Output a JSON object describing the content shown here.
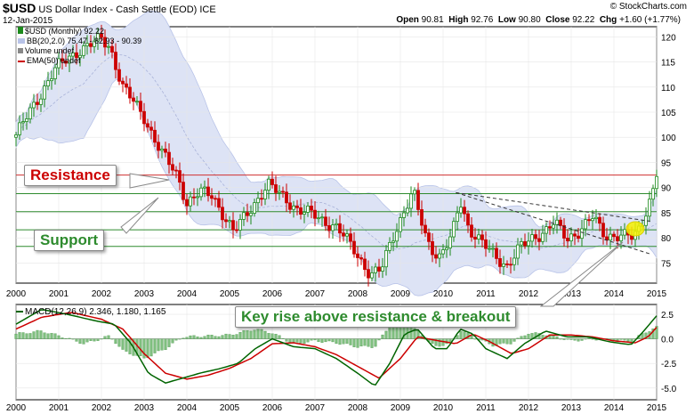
{
  "header": {
    "symbol": "$USD",
    "name": "US Dollar Index - Cash Settle (EOD)",
    "exchange": "ICE",
    "date": "12-Jan-2015",
    "open_label": "Open",
    "open": "90.81",
    "high_label": "High",
    "high": "92.76",
    "low_label": "Low",
    "low": "90.80",
    "close_label": "Close",
    "close": "92.22",
    "chg_label": "Chg",
    "chg": "+1.60 (+1.77%)",
    "watermark": "© StockCharts.com"
  },
  "legend": {
    "price": "$USD (Monthly) 92.22",
    "bb": "BB(20,2.0) 75.47 - 82.93 - 90.39",
    "volume": "Volume undef",
    "ema": "EMA(50) undef"
  },
  "annotations": {
    "resistance": "Resistance",
    "support": "Support",
    "breakout": "Key rise above resistance & breakout"
  },
  "colors": {
    "up": "#1c8a1c",
    "down": "#cc0000",
    "resistance_line": "#d03030",
    "support_line": "#2e8b2e",
    "band_fill": "#dde3f5",
    "macd": "#006400",
    "signal": "#cc0000",
    "histogram": "#7fbf7f",
    "annotation_red": "#cc0000",
    "annotation_green": "#2e8b2e"
  },
  "chart_data": [
    {
      "type": "candlestick",
      "title": "$USD (Monthly) 92.22",
      "x_ticks": [
        "2000",
        "2001",
        "2002",
        "2003",
        "2004",
        "2005",
        "2006",
        "2007",
        "2008",
        "2009",
        "2010",
        "2011",
        "2012",
        "2013",
        "2014",
        "2015"
      ],
      "y_ticks": [
        75,
        80,
        85,
        90,
        95,
        100,
        105,
        110,
        115,
        120
      ],
      "ylim": [
        71,
        122
      ],
      "xlim": [
        2000.0,
        2015.0
      ],
      "horizontal_lines": [
        92.5,
        88.8,
        85.2,
        81.6,
        78.3
      ],
      "breakout_trendlines": [
        {
          "from": [
            2010.3,
            89.0
          ],
          "to": [
            2014.85,
            76.8
          ]
        },
        {
          "from": [
            2010.3,
            89.0
          ],
          "to": [
            2014.85,
            83.3
          ]
        }
      ],
      "breakout_point": [
        2014.5,
        81.8
      ],
      "anchors": [
        [
          2000.0,
          100.5
        ],
        [
          2000.4,
          106
        ],
        [
          2000.9,
          113.5
        ],
        [
          2001.5,
          117.5
        ],
        [
          2002.0,
          119.5
        ],
        [
          2002.2,
          118
        ],
        [
          2002.5,
          110
        ],
        [
          2003.0,
          104
        ],
        [
          2003.4,
          97
        ],
        [
          2003.8,
          92
        ],
        [
          2004.0,
          87
        ],
        [
          2004.3,
          89
        ],
        [
          2004.6,
          88.5
        ],
        [
          2004.9,
          84
        ],
        [
          2005.1,
          81
        ],
        [
          2005.5,
          86
        ],
        [
          2005.9,
          90.5
        ],
        [
          2006.3,
          88
        ],
        [
          2006.6,
          85.5
        ],
        [
          2007.0,
          84.5
        ],
        [
          2007.5,
          82
        ],
        [
          2007.9,
          78
        ],
        [
          2008.3,
          72.5
        ],
        [
          2008.55,
          73.5
        ],
        [
          2008.8,
          80
        ],
        [
          2009.1,
          85.5
        ],
        [
          2009.3,
          89
        ],
        [
          2009.6,
          80
        ],
        [
          2009.9,
          76
        ],
        [
          2010.2,
          80
        ],
        [
          2010.4,
          87.5
        ],
        [
          2010.6,
          82
        ],
        [
          2010.9,
          79
        ],
        [
          2011.2,
          76.5
        ],
        [
          2011.5,
          74.5
        ],
        [
          2011.8,
          78
        ],
        [
          2012.1,
          80
        ],
        [
          2012.4,
          81.5
        ],
        [
          2012.6,
          83
        ],
        [
          2012.9,
          79.8
        ],
        [
          2013.2,
          81.5
        ],
        [
          2013.5,
          84
        ],
        [
          2013.8,
          80.5
        ],
        [
          2014.1,
          80.5
        ],
        [
          2014.45,
          80
        ],
        [
          2014.6,
          82
        ],
        [
          2014.75,
          85.5
        ],
        [
          2014.88,
          88.5
        ],
        [
          2015.0,
          92.2
        ]
      ]
    },
    {
      "type": "macd",
      "title": "MACD(12,26,9) 2.346, 1.180, 1.165",
      "params": "MACD(12,26,9)",
      "macd": 2.346,
      "signal": 1.18,
      "histogram": 1.165,
      "y_ticks": [
        2.5,
        0.0,
        -2.5,
        -5.0
      ],
      "ylim": [
        -6.2,
        3.5
      ],
      "x_ticks": [
        "2000",
        "2001",
        "2002",
        "2003",
        "2004",
        "2005",
        "2006",
        "2007",
        "2008",
        "2009",
        "2010",
        "2011",
        "2012",
        "2013",
        "2014",
        "2015"
      ],
      "macd_anchors": [
        [
          2000.0,
          1.5
        ],
        [
          2000.6,
          3
        ],
        [
          2001.2,
          2.5
        ],
        [
          2001.9,
          1.8
        ],
        [
          2002.3,
          1.5
        ],
        [
          2002.7,
          -0.5
        ],
        [
          2003.1,
          -3.5
        ],
        [
          2003.5,
          -4.5
        ],
        [
          2003.9,
          -4.0
        ],
        [
          2004.3,
          -3.5
        ],
        [
          2004.8,
          -3.0
        ],
        [
          2005.2,
          -2.5
        ],
        [
          2005.6,
          -1.0
        ],
        [
          2006.0,
          0.0
        ],
        [
          2006.5,
          -0.8
        ],
        [
          2007.0,
          -1.0
        ],
        [
          2007.5,
          -2.0
        ],
        [
          2008.0,
          -3.5
        ],
        [
          2008.4,
          -4.8
        ],
        [
          2008.75,
          -2.5
        ],
        [
          2009.1,
          0.5
        ],
        [
          2009.4,
          1.0
        ],
        [
          2009.8,
          -1.0
        ],
        [
          2010.1,
          -1.0
        ],
        [
          2010.4,
          1.0
        ],
        [
          2010.7,
          0.5
        ],
        [
          2011.0,
          -1.0
        ],
        [
          2011.5,
          -2.0
        ],
        [
          2011.9,
          -0.5
        ],
        [
          2012.4,
          0.8
        ],
        [
          2012.9,
          0.2
        ],
        [
          2013.4,
          0.2
        ],
        [
          2013.9,
          -0.3
        ],
        [
          2014.4,
          -0.6
        ],
        [
          2014.7,
          0.8
        ],
        [
          2015.0,
          2.35
        ]
      ],
      "signal_anchors": [
        [
          2000.0,
          1.0
        ],
        [
          2000.6,
          2.2
        ],
        [
          2001.3,
          2.7
        ],
        [
          2002.0,
          2.0
        ],
        [
          2002.5,
          1.0
        ],
        [
          2003.0,
          -1.5
        ],
        [
          2003.5,
          -3.5
        ],
        [
          2004.0,
          -4.1
        ],
        [
          2004.5,
          -3.7
        ],
        [
          2005.0,
          -3.0
        ],
        [
          2005.5,
          -2.0
        ],
        [
          2006.0,
          -0.5
        ],
        [
          2006.5,
          -0.4
        ],
        [
          2007.0,
          -0.8
        ],
        [
          2007.5,
          -1.6
        ],
        [
          2008.0,
          -2.8
        ],
        [
          2008.5,
          -4.0
        ],
        [
          2009.0,
          -2.0
        ],
        [
          2009.4,
          0.2
        ],
        [
          2009.9,
          -0.2
        ],
        [
          2010.3,
          -0.5
        ],
        [
          2010.7,
          0.5
        ],
        [
          2011.1,
          -0.3
        ],
        [
          2011.6,
          -1.5
        ],
        [
          2012.0,
          -1.0
        ],
        [
          2012.5,
          0.4
        ],
        [
          2013.0,
          0.4
        ],
        [
          2013.5,
          0.2
        ],
        [
          2014.0,
          -0.2
        ],
        [
          2014.5,
          -0.4
        ],
        [
          2014.8,
          0.2
        ],
        [
          2015.0,
          1.18
        ]
      ],
      "hist_anchors": [
        [
          2000.0,
          0.5
        ],
        [
          2000.6,
          0.8
        ],
        [
          2001.1,
          0.2
        ],
        [
          2001.6,
          -0.5
        ],
        [
          2002.2,
          0.3
        ],
        [
          2002.5,
          -1.2
        ],
        [
          2003.0,
          -2.0
        ],
        [
          2003.5,
          -1.0
        ],
        [
          2003.9,
          0.2
        ],
        [
          2004.5,
          0.3
        ],
        [
          2005.0,
          0.4
        ],
        [
          2005.6,
          1.0
        ],
        [
          2006.0,
          0.6
        ],
        [
          2006.5,
          -0.5
        ],
        [
          2007.0,
          -0.2
        ],
        [
          2007.5,
          -0.4
        ],
        [
          2008.0,
          -0.8
        ],
        [
          2008.4,
          -0.8
        ],
        [
          2008.75,
          1.3
        ],
        [
          2009.1,
          1.6
        ],
        [
          2009.4,
          0.8
        ],
        [
          2009.8,
          -0.8
        ],
        [
          2010.2,
          -0.4
        ],
        [
          2010.4,
          0.9
        ],
        [
          2010.8,
          0.0
        ],
        [
          2011.2,
          -0.7
        ],
        [
          2011.6,
          -0.4
        ],
        [
          2012.0,
          0.6
        ],
        [
          2012.5,
          0.4
        ],
        [
          2013.0,
          -0.2
        ],
        [
          2013.5,
          0.0
        ],
        [
          2014.0,
          -0.1
        ],
        [
          2014.4,
          -0.3
        ],
        [
          2014.7,
          0.6
        ],
        [
          2015.0,
          1.17
        ]
      ]
    }
  ]
}
